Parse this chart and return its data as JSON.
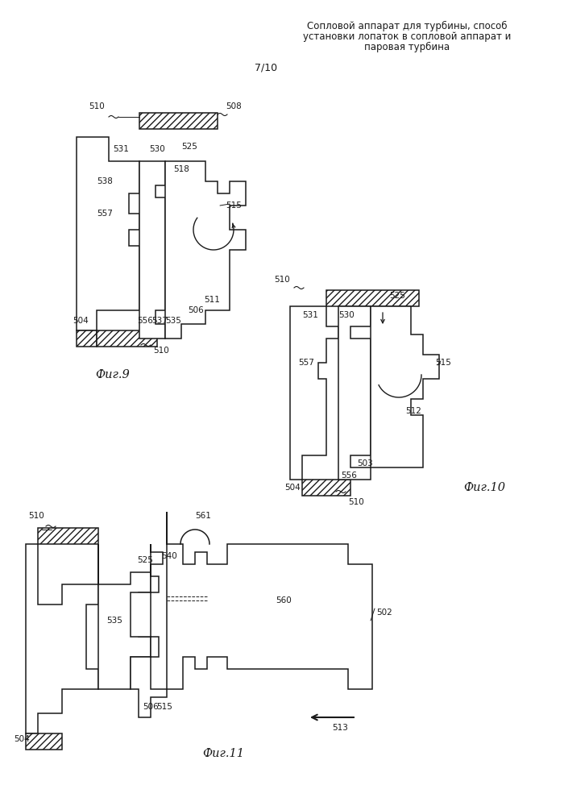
{
  "title_line1": "Сопловой аппарат для турбины, способ",
  "title_line2": "установки лопаток в сопловой аппарат и",
  "title_line3": "паровая турбина",
  "page_label": "7/10",
  "fig9_label": "Фиг.9",
  "fig10_label": "Фиг.10",
  "fig11_label": "Фиг.11",
  "background": "#ffffff",
  "line_color": "#1a1a1a"
}
